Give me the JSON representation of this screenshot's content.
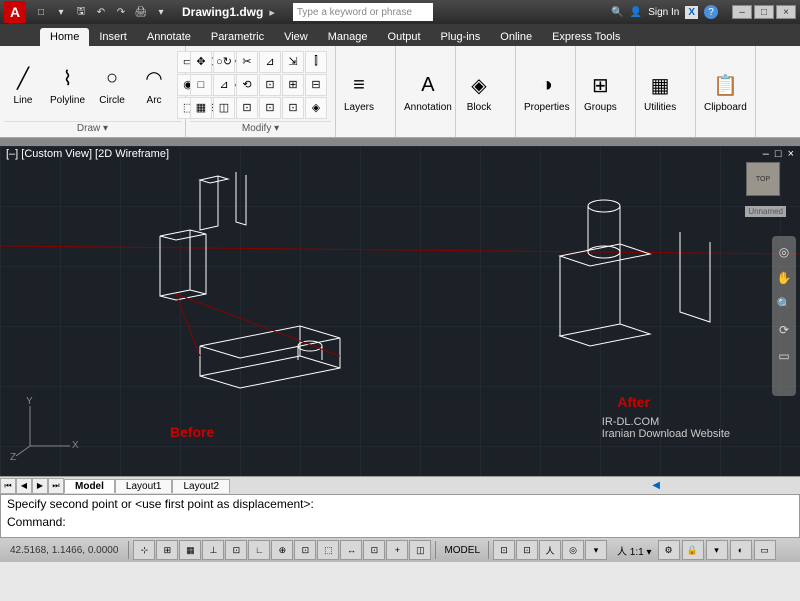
{
  "title": "Drawing1.dwg",
  "search_placeholder": "Type a keyword or phrase",
  "signin": "Sign In",
  "qat": [
    "□",
    "▾",
    "🖫",
    "↶",
    "↷",
    "🖨",
    "▾"
  ],
  "tabs": [
    "Home",
    "Insert",
    "Annotate",
    "Parametric",
    "View",
    "Manage",
    "Output",
    "Plug-ins",
    "Online",
    "Express Tools"
  ],
  "active_tab": 0,
  "draw": {
    "label": "Draw ▾",
    "items": [
      {
        "icon": "╱",
        "label": "Line"
      },
      {
        "icon": "⌇",
        "label": "Polyline"
      },
      {
        "icon": "○",
        "label": "Circle"
      },
      {
        "icon": "◠",
        "label": "Arc"
      }
    ],
    "small": [
      "▭",
      "⬡",
      "✧",
      "◉",
      "◐",
      "〰",
      "⬚",
      "⊞",
      "⋯"
    ]
  },
  "modify": {
    "label": "Modify ▾",
    "small": [
      "✥",
      "○↻",
      "✂",
      "⊿",
      "⇲",
      "⫿",
      "□",
      "⊿",
      "⟲",
      "⊡",
      "⊞",
      "⊟",
      "▦",
      "◫",
      "⊡",
      "⊡",
      "⊡",
      "◈"
    ]
  },
  "panels": [
    {
      "icon": "≡",
      "label": "Layers"
    },
    {
      "icon": "A",
      "label": "Annotation"
    },
    {
      "icon": "◈",
      "label": "Block"
    },
    {
      "icon": "◑",
      "label": "Properties"
    },
    {
      "icon": "⊞",
      "label": "Groups"
    },
    {
      "icon": "▦",
      "label": "Utilities"
    },
    {
      "icon": "📋",
      "label": "Clipboard"
    }
  ],
  "viewport": {
    "header": "[–] [Custom View] [2D Wireframe]",
    "before": "Before",
    "after": "After",
    "before_color": "#cc0000",
    "after_color": "#cc0000",
    "watermark1": "IR-DL.COM",
    "watermark2": "Iranian Download Website",
    "cube": "TOP",
    "unnamed": "Unnamed",
    "bg": "#1b2127",
    "grid": "#2a3138",
    "wire": "#ffffff",
    "redline": "#8b0000"
  },
  "layout_tabs": [
    "Model",
    "Layout1",
    "Layout2"
  ],
  "active_layout": 0,
  "cmd": {
    "line1": "Specify second point or <use first point as displacement>:",
    "line2": "Command:"
  },
  "status": {
    "coords": "42.5168, 1.1466, 0.0000",
    "model": "MODEL",
    "scale": "1:1",
    "buttons": [
      "⊹",
      "⊞",
      "▦",
      "⊥",
      "⊡",
      "∟",
      "⊕",
      "⊡",
      "⬚",
      "↔",
      "⊡",
      "+",
      "◫"
    ],
    "right": [
      "⊡",
      "⊡",
      "人",
      "◎",
      "▾"
    ]
  }
}
